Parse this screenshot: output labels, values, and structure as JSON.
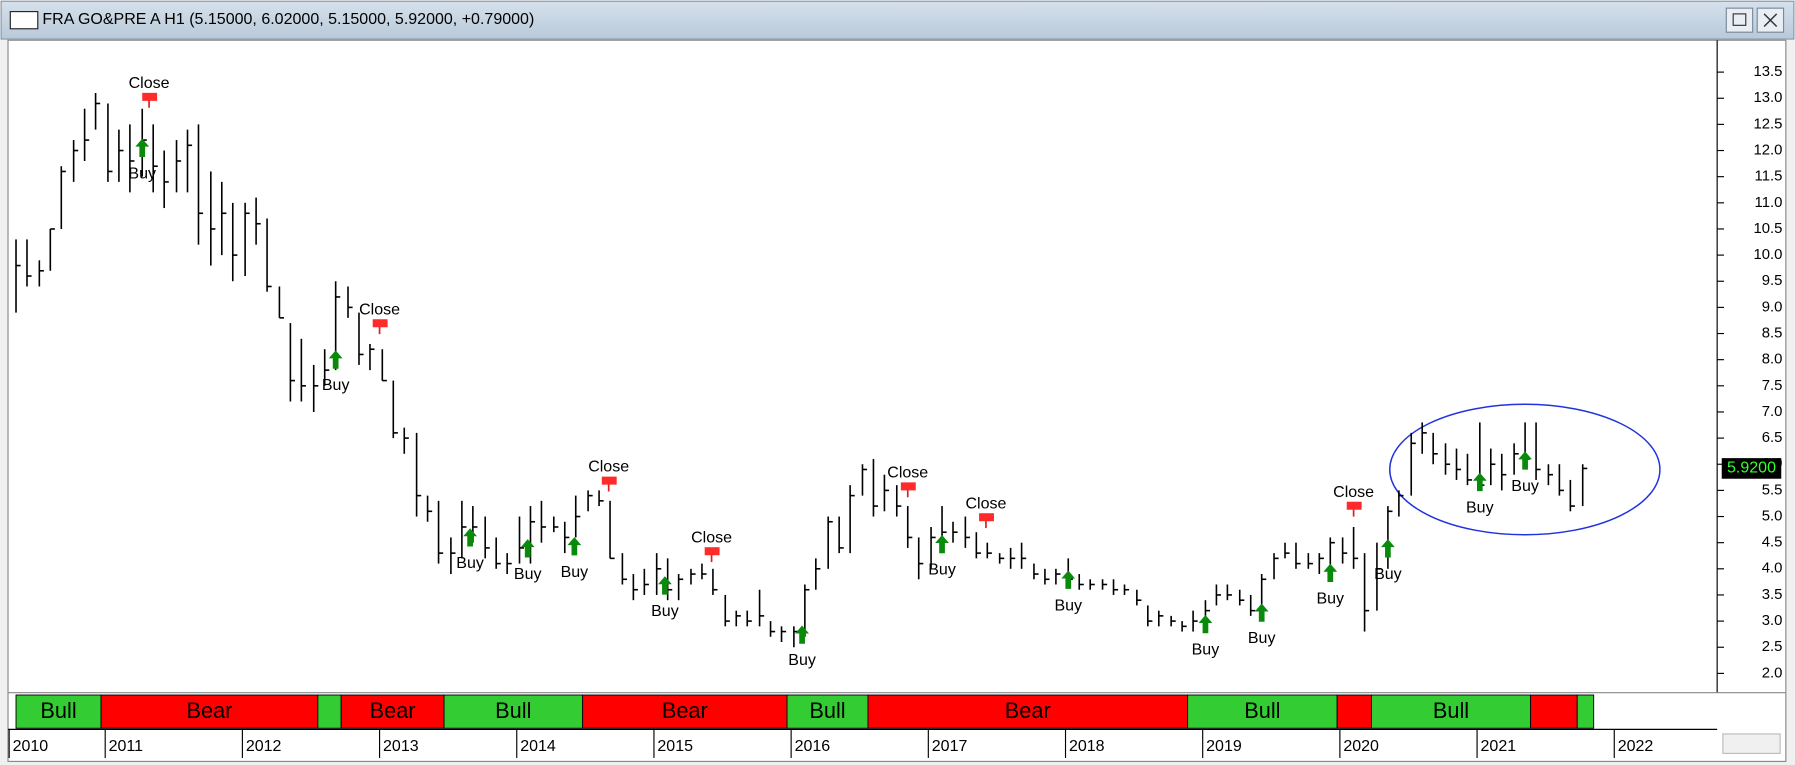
{
  "chart_data": {
    "type": "ohlc",
    "title": "FRA GO&PRE A H1 (5.15000, 6.02000, 5.15000, 5.92000, +0.79000)",
    "xlim": [
      2010.3,
      2022.75
    ],
    "xticks": [
      {
        "value": 2010.3,
        "label": "2010"
      },
      2011,
      2012,
      2013,
      2014,
      2015,
      2016,
      2017,
      2018,
      2019,
      2020,
      2021,
      2022
    ],
    "ylim": [
      1.63,
      14.11
    ],
    "yticks": [
      {
        "value": 2,
        "label": "2.0"
      },
      2.5,
      {
        "value": 3,
        "label": "3.0"
      },
      3.5,
      {
        "value": 4,
        "label": "4.0"
      },
      4.5,
      {
        "value": 5,
        "label": "5.0"
      },
      5.5,
      {
        "value": 6,
        "label": "6.0"
      },
      6.5,
      {
        "value": 7,
        "label": "7.0"
      },
      7.5,
      {
        "value": 8,
        "label": "8.0"
      },
      8.5,
      {
        "value": 9,
        "label": "9.0"
      },
      9.5,
      {
        "value": 10,
        "label": "10.0"
      },
      10.5,
      {
        "value": 11,
        "label": "11.0"
      },
      11.5,
      {
        "value": 12,
        "label": "12.0"
      },
      12.5,
      {
        "value": 13,
        "label": "13.0"
      },
      13.5
    ],
    "color": "#000000",
    "bars": {
      "x": [
        2010.35,
        2010.43,
        2010.52,
        2010.6,
        2010.68,
        2010.77,
        2010.85,
        2010.93,
        2011.02,
        2011.1,
        2011.18,
        2011.27,
        2011.35,
        2011.43,
        2011.52,
        2011.6,
        2011.68,
        2011.77,
        2011.85,
        2011.93,
        2012.02,
        2012.1,
        2012.18,
        2012.27,
        2012.35,
        2012.43,
        2012.52,
        2012.6,
        2012.68,
        2012.77,
        2012.85,
        2012.93,
        2013.02,
        2013.1,
        2013.18,
        2013.27,
        2013.35,
        2013.43,
        2013.52,
        2013.6,
        2013.68,
        2013.77,
        2013.85,
        2013.93,
        2014.02,
        2014.1,
        2014.18,
        2014.27,
        2014.35,
        2014.43,
        2014.52,
        2014.6,
        2014.68,
        2014.77,
        2014.85,
        2014.93,
        2015.02,
        2015.1,
        2015.18,
        2015.27,
        2015.35,
        2015.43,
        2015.52,
        2015.6,
        2015.68,
        2015.77,
        2015.85,
        2015.93,
        2016.02,
        2016.1,
        2016.18,
        2016.27,
        2016.35,
        2016.43,
        2016.52,
        2016.6,
        2016.68,
        2016.77,
        2016.85,
        2016.93,
        2017.02,
        2017.1,
        2017.18,
        2017.27,
        2017.35,
        2017.43,
        2017.52,
        2017.6,
        2017.68,
        2017.77,
        2017.85,
        2017.93,
        2018.02,
        2018.1,
        2018.18,
        2018.27,
        2018.35,
        2018.43,
        2018.52,
        2018.6,
        2018.68,
        2018.77,
        2018.85,
        2018.93,
        2019.02,
        2019.1,
        2019.18,
        2019.27,
        2019.35,
        2019.43,
        2019.52,
        2019.6,
        2019.68,
        2019.77,
        2019.85,
        2019.93,
        2020.02,
        2020.1,
        2020.18,
        2020.27,
        2020.35,
        2020.43,
        2020.52,
        2020.6,
        2020.68,
        2020.77,
        2020.85,
        2020.93,
        2021.02,
        2021.1,
        2021.18,
        2021.27,
        2021.35,
        2021.43,
        2021.52,
        2021.6,
        2021.68,
        2021.77
      ],
      "high": [
        10.3,
        10.3,
        9.9,
        10.5,
        11.7,
        12.2,
        12.8,
        13.1,
        12.9,
        12.4,
        12.5,
        12.8,
        12.5,
        12.0,
        12.2,
        12.4,
        12.5,
        11.6,
        11.4,
        11.0,
        11.0,
        11.1,
        10.7,
        9.4,
        8.7,
        8.4,
        7.9,
        8.2,
        9.5,
        9.4,
        8.9,
        8.3,
        8.2,
        7.6,
        6.7,
        6.6,
        5.4,
        5.3,
        4.6,
        5.3,
        5.2,
        5.0,
        4.6,
        4.3,
        5.0,
        5.2,
        5.3,
        5.0,
        4.9,
        5.4,
        5.5,
        5.5,
        5.3,
        4.3,
        3.9,
        4.0,
        4.3,
        4.2,
        3.9,
        4.0,
        4.1,
        4.0,
        3.5,
        3.2,
        3.2,
        3.6,
        3.0,
        2.9,
        2.9,
        3.7,
        4.2,
        5.0,
        5.0,
        5.6,
        6.0,
        6.1,
        5.8,
        5.6,
        5.2,
        4.6,
        4.8,
        5.2,
        4.9,
        5.0,
        4.7,
        4.5,
        4.3,
        4.4,
        4.5,
        4.1,
        4.0,
        4.0,
        4.2,
        3.9,
        3.8,
        3.8,
        3.8,
        3.7,
        3.6,
        3.3,
        3.2,
        3.1,
        3.0,
        3.2,
        3.4,
        3.7,
        3.7,
        3.6,
        3.5,
        3.9,
        4.3,
        4.5,
        4.5,
        4.3,
        4.3,
        4.6,
        4.6,
        4.8,
        4.3,
        4.5,
        5.2,
        5.5,
        6.6,
        6.8,
        6.6,
        6.4,
        6.3,
        6.2,
        6.8,
        6.3,
        6.2,
        6.4,
        6.8,
        6.8,
        6.0,
        6.0,
        5.7,
        6.0
      ],
      "low": [
        8.9,
        9.4,
        9.4,
        9.7,
        10.5,
        11.4,
        11.8,
        12.4,
        11.4,
        11.4,
        11.2,
        11.5,
        11.2,
        10.9,
        11.2,
        11.2,
        10.2,
        9.8,
        10.0,
        9.5,
        9.6,
        10.2,
        9.3,
        8.8,
        7.2,
        7.2,
        7.0,
        7.5,
        7.8,
        8.8,
        7.9,
        7.8,
        7.6,
        6.5,
        6.2,
        5.0,
        4.9,
        4.1,
        3.9,
        4.2,
        4.5,
        4.2,
        4.0,
        3.9,
        4.1,
        4.1,
        4.5,
        4.7,
        4.3,
        4.6,
        5.1,
        5.2,
        4.2,
        3.7,
        3.4,
        3.5,
        3.5,
        3.4,
        3.4,
        3.7,
        3.8,
        3.5,
        2.9,
        2.9,
        2.9,
        2.9,
        2.7,
        2.6,
        2.5,
        2.7,
        3.6,
        4.0,
        4.3,
        4.3,
        5.4,
        5.0,
        5.1,
        5.0,
        4.4,
        3.8,
        4.0,
        4.3,
        4.5,
        4.4,
        4.2,
        4.2,
        4.1,
        4.0,
        4.0,
        3.8,
        3.7,
        3.7,
        3.7,
        3.6,
        3.6,
        3.6,
        3.5,
        3.5,
        3.3,
        2.9,
        2.9,
        2.9,
        2.8,
        2.8,
        2.9,
        3.3,
        3.4,
        3.3,
        3.1,
        3.1,
        3.8,
        4.2,
        4.0,
        4.0,
        3.9,
        4.0,
        4.1,
        4.0,
        2.8,
        3.2,
        4.0,
        5.0,
        5.4,
        6.2,
        6.0,
        5.8,
        5.7,
        5.6,
        5.5,
        5.6,
        5.5,
        5.8,
        6.0,
        5.7,
        5.6,
        5.4,
        5.1,
        5.2
      ],
      "close": [
        9.8,
        9.6,
        9.7,
        10.5,
        11.6,
        12.0,
        12.2,
        12.9,
        11.6,
        12.0,
        11.8,
        12.2,
        11.7,
        11.4,
        11.8,
        12.1,
        10.8,
        10.5,
        10.8,
        10.0,
        10.8,
        10.6,
        9.4,
        8.8,
        7.6,
        7.5,
        7.5,
        7.8,
        9.2,
        9.0,
        8.1,
        8.2,
        7.6,
        6.6,
        6.5,
        5.4,
        5.1,
        4.3,
        4.3,
        4.8,
        4.8,
        4.4,
        4.1,
        4.1,
        4.4,
        4.9,
        4.8,
        4.8,
        4.6,
        5.0,
        5.4,
        5.3,
        4.2,
        3.8,
        3.6,
        3.7,
        4.0,
        3.6,
        3.8,
        3.9,
        3.9,
        3.6,
        3.0,
        3.1,
        3.0,
        3.1,
        2.8,
        2.8,
        2.8,
        3.6,
        4.0,
        4.9,
        4.4,
        5.4,
        5.9,
        5.2,
        5.5,
        5.2,
        4.6,
        4.1,
        4.6,
        4.7,
        4.7,
        4.6,
        4.3,
        4.3,
        4.2,
        4.2,
        4.2,
        3.9,
        3.8,
        3.9,
        3.8,
        3.7,
        3.7,
        3.7,
        3.6,
        3.6,
        3.4,
        3.0,
        3.1,
        3.0,
        2.9,
        3.0,
        3.2,
        3.5,
        3.5,
        3.4,
        3.2,
        3.8,
        4.2,
        4.3,
        4.1,
        4.1,
        4.2,
        4.5,
        4.3,
        4.2,
        3.2,
        4.0,
        5.1,
        5.4,
        6.4,
        6.6,
        6.2,
        6.0,
        5.9,
        5.7,
        5.6,
        6.0,
        5.8,
        6.2,
        6.1,
        5.9,
        5.8,
        5.5,
        5.2,
        5.92
      ]
    },
    "signals": [
      {
        "label": "Buy",
        "x": 2011.27,
        "y": 12.03
      },
      {
        "label": "Close",
        "x": 2011.32,
        "y": 12.95
      },
      {
        "label": "Buy",
        "x": 2012.68,
        "y": 7.98
      },
      {
        "label": "Close",
        "x": 2013.0,
        "y": 8.62
      },
      {
        "label": "Buy",
        "x": 2013.66,
        "y": 4.58
      },
      {
        "label": "Buy",
        "x": 2014.08,
        "y": 4.37
      },
      {
        "label": "Buy",
        "x": 2014.42,
        "y": 4.41
      },
      {
        "label": "Close",
        "x": 2014.67,
        "y": 5.61
      },
      {
        "label": "Buy",
        "x": 2015.08,
        "y": 3.66
      },
      {
        "label": "Close",
        "x": 2015.42,
        "y": 4.26
      },
      {
        "label": "Buy",
        "x": 2016.08,
        "y": 2.72
      },
      {
        "label": "Close",
        "x": 2016.85,
        "y": 5.5
      },
      {
        "label": "Buy",
        "x": 2017.1,
        "y": 4.45
      },
      {
        "label": "Close",
        "x": 2017.42,
        "y": 4.91
      },
      {
        "label": "Buy",
        "x": 2018.02,
        "y": 3.77
      },
      {
        "label": "Buy",
        "x": 2019.02,
        "y": 2.92
      },
      {
        "label": "Buy",
        "x": 2019.43,
        "y": 3.14
      },
      {
        "label": "Buy",
        "x": 2019.93,
        "y": 3.9
      },
      {
        "label": "Close",
        "x": 2020.1,
        "y": 5.13
      },
      {
        "label": "Buy",
        "x": 2020.35,
        "y": 4.37
      },
      {
        "label": "Buy",
        "x": 2021.02,
        "y": 5.64
      },
      {
        "label": "Buy",
        "x": 2021.35,
        "y": 6.05
      }
    ],
    "regimes": [
      {
        "start": 2010.35,
        "end": 2010.97,
        "label": "Bull",
        "color": "#33cc33"
      },
      {
        "start": 2010.97,
        "end": 2012.55,
        "label": "Bear",
        "color": "#ff0000"
      },
      {
        "start": 2012.55,
        "end": 2012.72,
        "color": "#33cc33"
      },
      {
        "start": 2012.72,
        "end": 2013.47,
        "label": "Bear",
        "color": "#ff0000"
      },
      {
        "start": 2013.47,
        "end": 2014.48,
        "label": "Bull",
        "color": "#33cc33"
      },
      {
        "start": 2014.48,
        "end": 2015.97,
        "label": "Bear",
        "color": "#ff0000"
      },
      {
        "start": 2015.97,
        "end": 2016.56,
        "label": "Bull",
        "color": "#33cc33"
      },
      {
        "start": 2016.56,
        "end": 2018.89,
        "label": "Bear",
        "color": "#ff0000"
      },
      {
        "start": 2018.89,
        "end": 2019.98,
        "label": "Bull",
        "color": "#33cc33"
      },
      {
        "start": 2019.98,
        "end": 2020.23,
        "color": "#ff0000"
      },
      {
        "start": 2020.23,
        "end": 2021.39,
        "label": "Bull",
        "color": "#33cc33"
      },
      {
        "start": 2021.39,
        "end": 2021.73,
        "color": "#ff0000"
      },
      {
        "start": 2021.73,
        "end": 2021.85,
        "color": "#33cc33"
      }
    ],
    "last_price": {
      "value": 5.92,
      "label": "5.9200"
    }
  }
}
